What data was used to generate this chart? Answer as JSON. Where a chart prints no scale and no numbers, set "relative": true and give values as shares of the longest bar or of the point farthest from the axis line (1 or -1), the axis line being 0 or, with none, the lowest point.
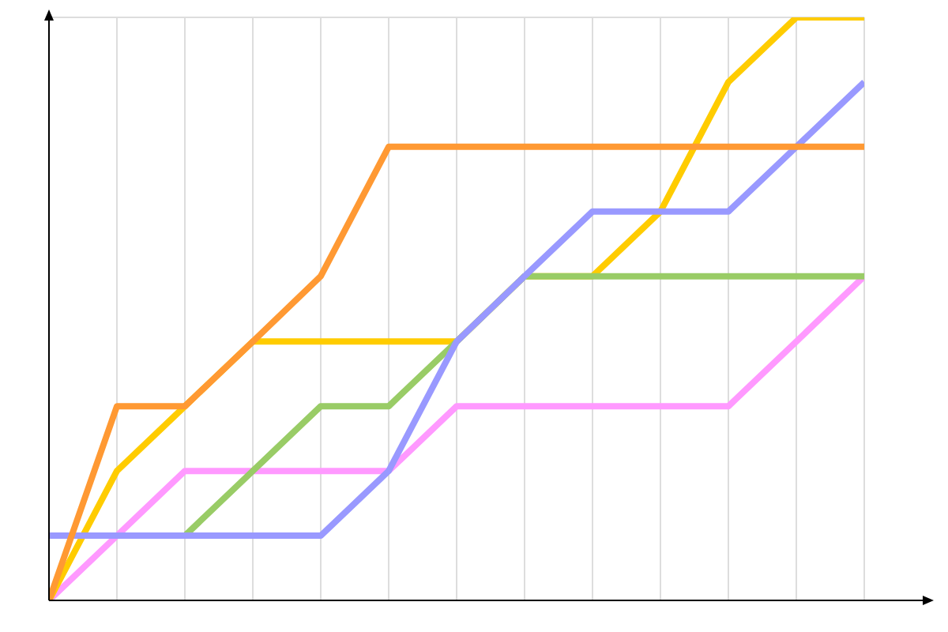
{
  "chart_data": {
    "type": "line",
    "relative": true,
    "grid": true,
    "legend": false,
    "marker": "none",
    "line_style": "solid",
    "categories": [
      null,
      null,
      null,
      null,
      null,
      null,
      null,
      null,
      null,
      null,
      null,
      null,
      null
    ],
    "series": [
      {
        "color": "#ff99ff",
        "values": [
          0,
          0.111,
          0.222,
          0.222,
          0.222,
          0.222,
          0.333,
          0.333,
          0.333,
          0.333,
          0.333,
          0.444,
          0.556
        ]
      },
      {
        "color": "#ffcc00",
        "values": [
          0,
          0.222,
          0.333,
          0.444,
          0.444,
          0.444,
          0.444,
          0.556,
          0.556,
          0.667,
          0.889,
          1,
          1
        ]
      },
      {
        "color": "#99cc66",
        "values": [
          null,
          null,
          0.111,
          0.222,
          0.333,
          0.333,
          0.444,
          0.556,
          0.556,
          0.556,
          0.556,
          0.556,
          0.556
        ]
      },
      {
        "color": "#9999ff",
        "values": [
          0.111,
          0.111,
          0.111,
          0.111,
          0.111,
          0.222,
          0.444,
          0.556,
          0.667,
          0.667,
          0.667,
          0.778,
          0.889
        ]
      },
      {
        "color": "#ff9933",
        "values": [
          0,
          0.333,
          0.333,
          0.444,
          0.556,
          0.778,
          0.778,
          0.778,
          0.778,
          0.778,
          0.778,
          0.778,
          0.778
        ]
      }
    ]
  }
}
